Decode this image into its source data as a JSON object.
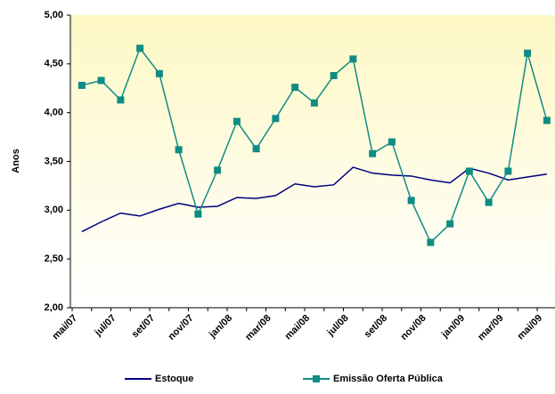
{
  "chart_data": {
    "type": "line",
    "y_label": "Anos",
    "categories": [
      "mai/07",
      null,
      "jul/07",
      null,
      "set/07",
      null,
      "nov/07",
      null,
      "jan/08",
      null,
      "mar/08",
      null,
      "mai/08",
      null,
      "jul/08",
      null,
      "set/08",
      null,
      "nov/08",
      null,
      "jan/09",
      null,
      "mar/09",
      null,
      "mai/09"
    ],
    "series": [
      {
        "name": "Estoque",
        "color": "#000080",
        "marker": false,
        "values": [
          2.78,
          2.88,
          2.97,
          2.94,
          3.01,
          3.07,
          3.03,
          3.04,
          3.13,
          3.12,
          3.15,
          3.27,
          3.24,
          3.26,
          3.44,
          3.38,
          3.36,
          3.35,
          3.31,
          3.28,
          3.43,
          3.38,
          3.31,
          3.34,
          3.37
        ]
      },
      {
        "name": "Emissão Oferta Pública",
        "color": "#108c84",
        "marker": true,
        "values": [
          4.28,
          4.33,
          4.13,
          4.66,
          4.4,
          3.62,
          2.96,
          3.41,
          3.91,
          3.63,
          3.94,
          4.26,
          4.1,
          4.38,
          4.55,
          3.58,
          3.7,
          3.1,
          2.67,
          2.86,
          3.4,
          3.08,
          3.4,
          4.61,
          3.92
        ]
      }
    ],
    "ylim": [
      2,
      5
    ],
    "yticks": [
      {
        "value": 2,
        "label": "2,00"
      },
      {
        "value": 2.5,
        "label": "2,50"
      },
      {
        "value": 3,
        "label": "3,00"
      },
      {
        "value": 3.5,
        "label": "3,50"
      },
      {
        "value": 4,
        "label": "4,00"
      },
      {
        "value": 4.5,
        "label": "4,50"
      },
      {
        "value": 5,
        "label": "5,00"
      }
    ],
    "legend": "bottom"
  }
}
